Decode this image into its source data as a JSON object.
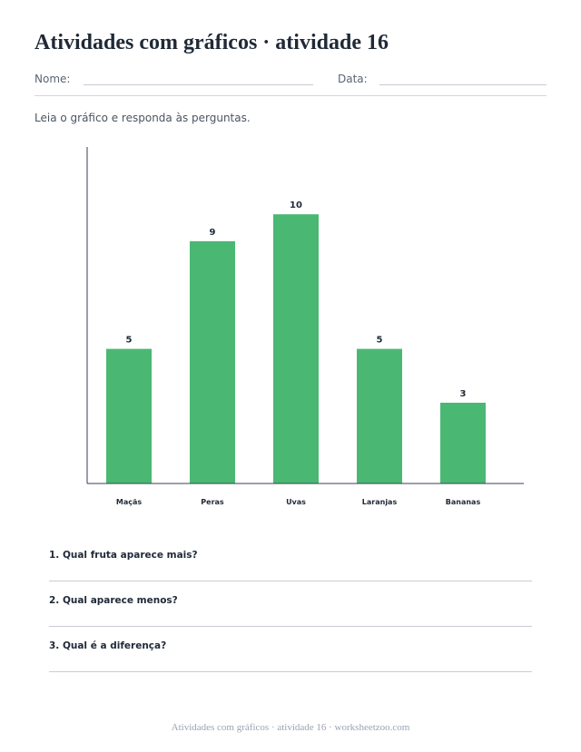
{
  "worksheet": {
    "title": "Atividades com gráficos · atividade 16",
    "name_label": "Nome:",
    "date_label": "Data:",
    "instruction": "Leia o gráfico e responda às perguntas.",
    "questions": [
      "1. Qual fruta aparece mais?",
      "2. Qual aparece menos?",
      "3. Qual é a diferença?"
    ],
    "footer": "Atividades com gráficos · atividade 16 · worksheetzoo.com"
  },
  "colors": {
    "bar": "#4ab873",
    "axis": "#374151",
    "text": "#1f2937"
  },
  "chart_data": {
    "type": "bar",
    "categories": [
      "Maçãs",
      "Peras",
      "Uvas",
      "Laranjas",
      "Bananas"
    ],
    "values": [
      5,
      9,
      10,
      5,
      3
    ],
    "title": "",
    "xlabel": "",
    "ylabel": "",
    "ylim": [
      0,
      12.5
    ],
    "grid": false,
    "data_labels": true
  }
}
